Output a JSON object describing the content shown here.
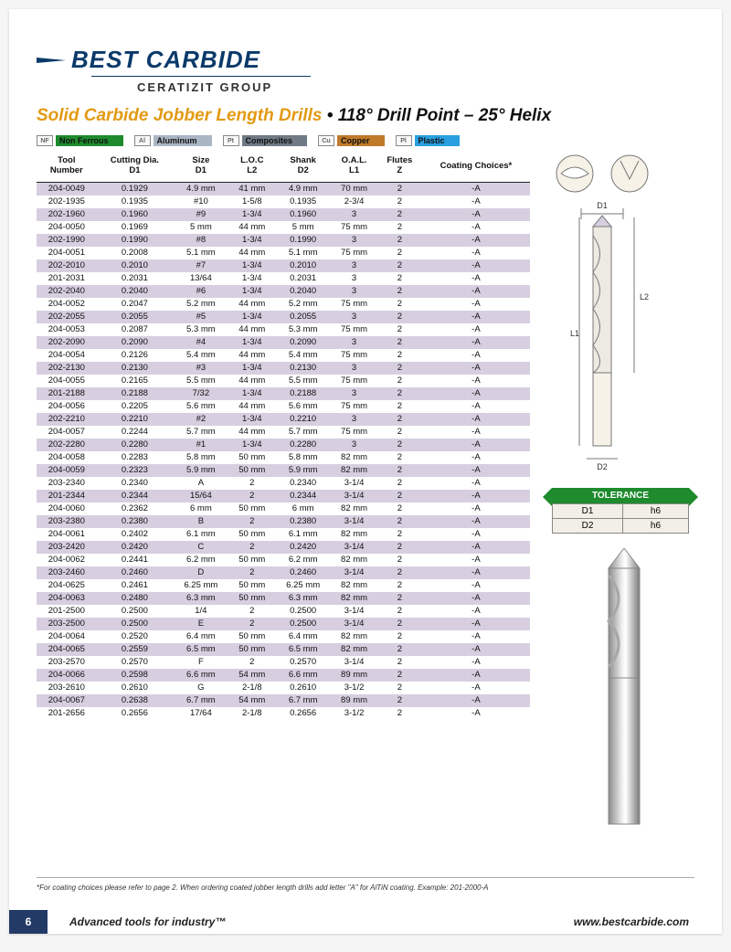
{
  "brand": {
    "name": "BEST CARBIDE",
    "subtitle": "CERATIZIT GROUP",
    "accent_color": "#0a3a6a"
  },
  "title": {
    "left": "Solid Carbide Jobber Length Drills",
    "sep": " • ",
    "right": "118° Drill Point – 25° Helix",
    "left_color": "#e39a13",
    "right_color": "#111111"
  },
  "materials": [
    {
      "code": "NF",
      "label": "Non Ferrous",
      "color": "#1e8b2d"
    },
    {
      "code": "Al",
      "label": "Aluminum",
      "color": "#aab6c4"
    },
    {
      "code": "Pt",
      "label": "Composites",
      "color": "#6f7a85"
    },
    {
      "code": "Cu",
      "label": "Copper",
      "color": "#c07a2a"
    },
    {
      "code": "Pl",
      "label": "Plastic",
      "color": "#2a9fe0"
    }
  ],
  "table": {
    "columns": [
      [
        "Tool",
        "Number"
      ],
      [
        "Cutting Dia.",
        "D1"
      ],
      [
        "Size",
        "D1"
      ],
      [
        "L.O.C",
        "L2"
      ],
      [
        "Shank",
        "D2"
      ],
      [
        "O.A.L.",
        "L1"
      ],
      [
        "Flutes",
        "Z"
      ],
      [
        "Coating Choices*",
        ""
      ]
    ],
    "alt_row_color": "#d7cfe0",
    "rows": [
      [
        "204-0049",
        "0.1929",
        "4.9 mm",
        "41 mm",
        "4.9 mm",
        "70 mm",
        "2",
        "-A"
      ],
      [
        "202-1935",
        "0.1935",
        "#10",
        "1-5/8",
        "0.1935",
        "2-3/4",
        "2",
        "-A"
      ],
      [
        "202-1960",
        "0.1960",
        "#9",
        "1-3/4",
        "0.1960",
        "3",
        "2",
        "-A"
      ],
      [
        "204-0050",
        "0.1969",
        "5 mm",
        "44 mm",
        "5 mm",
        "75 mm",
        "2",
        "-A"
      ],
      [
        "202-1990",
        "0.1990",
        "#8",
        "1-3/4",
        "0.1990",
        "3",
        "2",
        "-A"
      ],
      [
        "204-0051",
        "0.2008",
        "5.1 mm",
        "44 mm",
        "5.1 mm",
        "75 mm",
        "2",
        "-A"
      ],
      [
        "202-2010",
        "0.2010",
        "#7",
        "1-3/4",
        "0.2010",
        "3",
        "2",
        "-A"
      ],
      [
        "201-2031",
        "0.2031",
        "13/64",
        "1-3/4",
        "0.2031",
        "3",
        "2",
        "-A"
      ],
      [
        "202-2040",
        "0.2040",
        "#6",
        "1-3/4",
        "0.2040",
        "3",
        "2",
        "-A"
      ],
      [
        "204-0052",
        "0.2047",
        "5.2 mm",
        "44 mm",
        "5.2 mm",
        "75 mm",
        "2",
        "-A"
      ],
      [
        "202-2055",
        "0.2055",
        "#5",
        "1-3/4",
        "0.2055",
        "3",
        "2",
        "-A"
      ],
      [
        "204-0053",
        "0.2087",
        "5.3 mm",
        "44 mm",
        "5.3 mm",
        "75 mm",
        "2",
        "-A"
      ],
      [
        "202-2090",
        "0.2090",
        "#4",
        "1-3/4",
        "0.2090",
        "3",
        "2",
        "-A"
      ],
      [
        "204-0054",
        "0.2126",
        "5.4 mm",
        "44 mm",
        "5.4 mm",
        "75 mm",
        "2",
        "-A"
      ],
      [
        "202-2130",
        "0.2130",
        "#3",
        "1-3/4",
        "0.2130",
        "3",
        "2",
        "-A"
      ],
      [
        "204-0055",
        "0.2165",
        "5.5 mm",
        "44 mm",
        "5.5 mm",
        "75 mm",
        "2",
        "-A"
      ],
      [
        "201-2188",
        "0.2188",
        "7/32",
        "1-3/4",
        "0.2188",
        "3",
        "2",
        "-A"
      ],
      [
        "204-0056",
        "0.2205",
        "5.6 mm",
        "44 mm",
        "5.6 mm",
        "75 mm",
        "2",
        "-A"
      ],
      [
        "202-2210",
        "0.2210",
        "#2",
        "1-3/4",
        "0.2210",
        "3",
        "2",
        "-A"
      ],
      [
        "204-0057",
        "0.2244",
        "5.7 mm",
        "44 mm",
        "5.7 mm",
        "75 mm",
        "2",
        "-A"
      ],
      [
        "202-2280",
        "0.2280",
        "#1",
        "1-3/4",
        "0.2280",
        "3",
        "2",
        "-A"
      ],
      [
        "204-0058",
        "0.2283",
        "5.8 mm",
        "50 mm",
        "5.8 mm",
        "82 mm",
        "2",
        "-A"
      ],
      [
        "204-0059",
        "0.2323",
        "5.9 mm",
        "50 mm",
        "5.9 mm",
        "82 mm",
        "2",
        "-A"
      ],
      [
        "203-2340",
        "0.2340",
        "A",
        "2",
        "0.2340",
        "3-1/4",
        "2",
        "-A"
      ],
      [
        "201-2344",
        "0.2344",
        "15/64",
        "2",
        "0.2344",
        "3-1/4",
        "2",
        "-A"
      ],
      [
        "204-0060",
        "0.2362",
        "6 mm",
        "50 mm",
        "6 mm",
        "82 mm",
        "2",
        "-A"
      ],
      [
        "203-2380",
        "0.2380",
        "B",
        "2",
        "0.2380",
        "3-1/4",
        "2",
        "-A"
      ],
      [
        "204-0061",
        "0.2402",
        "6.1 mm",
        "50 mm",
        "6.1 mm",
        "82 mm",
        "2",
        "-A"
      ],
      [
        "203-2420",
        "0.2420",
        "C",
        "2",
        "0.2420",
        "3-1/4",
        "2",
        "-A"
      ],
      [
        "204-0062",
        "0.2441",
        "6.2 mm",
        "50 mm",
        "6.2 mm",
        "82 mm",
        "2",
        "-A"
      ],
      [
        "203-2460",
        "0.2460",
        "D",
        "2",
        "0.2460",
        "3-1/4",
        "2",
        "-A"
      ],
      [
        "204-0625",
        "0.2461",
        "6.25 mm",
        "50 mm",
        "6.25 mm",
        "82 mm",
        "2",
        "-A"
      ],
      [
        "204-0063",
        "0.2480",
        "6.3 mm",
        "50 mm",
        "6.3 mm",
        "82 mm",
        "2",
        "-A"
      ],
      [
        "201-2500",
        "0.2500",
        "1/4",
        "2",
        "0.2500",
        "3-1/4",
        "2",
        "-A"
      ],
      [
        "203-2500",
        "0.2500",
        "E",
        "2",
        "0.2500",
        "3-1/4",
        "2",
        "-A"
      ],
      [
        "204-0064",
        "0.2520",
        "6.4 mm",
        "50 mm",
        "6.4 mm",
        "82 mm",
        "2",
        "-A"
      ],
      [
        "204-0065",
        "0.2559",
        "6.5 mm",
        "50 mm",
        "6.5 mm",
        "82 mm",
        "2",
        "-A"
      ],
      [
        "203-2570",
        "0.2570",
        "F",
        "2",
        "0.2570",
        "3-1/4",
        "2",
        "-A"
      ],
      [
        "204-0066",
        "0.2598",
        "6.6 mm",
        "54 mm",
        "6.6 mm",
        "89 mm",
        "2",
        "-A"
      ],
      [
        "203-2610",
        "0.2610",
        "G",
        "2-1/8",
        "0.2610",
        "3-1/2",
        "2",
        "-A"
      ],
      [
        "204-0067",
        "0.2638",
        "6.7 mm",
        "54 mm",
        "6.7 mm",
        "89 mm",
        "2",
        "-A"
      ],
      [
        "201-2656",
        "0.2656",
        "17/64",
        "2-1/8",
        "0.2656",
        "3-1/2",
        "2",
        "-A"
      ]
    ]
  },
  "diagram_labels": {
    "d1": "D1",
    "d2": "D2",
    "l1": "L1",
    "l2": "L2"
  },
  "tolerance": {
    "title": "TOLERANCE",
    "rows": [
      [
        "D1",
        "h6"
      ],
      [
        "D2",
        "h6"
      ]
    ],
    "head_color": "#1e8b2d"
  },
  "footnote": "*For coating choices please refer to page 2. When ordering coated jobber length drills add letter \"A\" for AlTiN coating. Example: 201-2000-A",
  "footer": {
    "page_number": "6",
    "tagline": "Advanced tools for industry™",
    "url": "www.bestcarbide.com",
    "pagebox_color": "#233a66"
  }
}
